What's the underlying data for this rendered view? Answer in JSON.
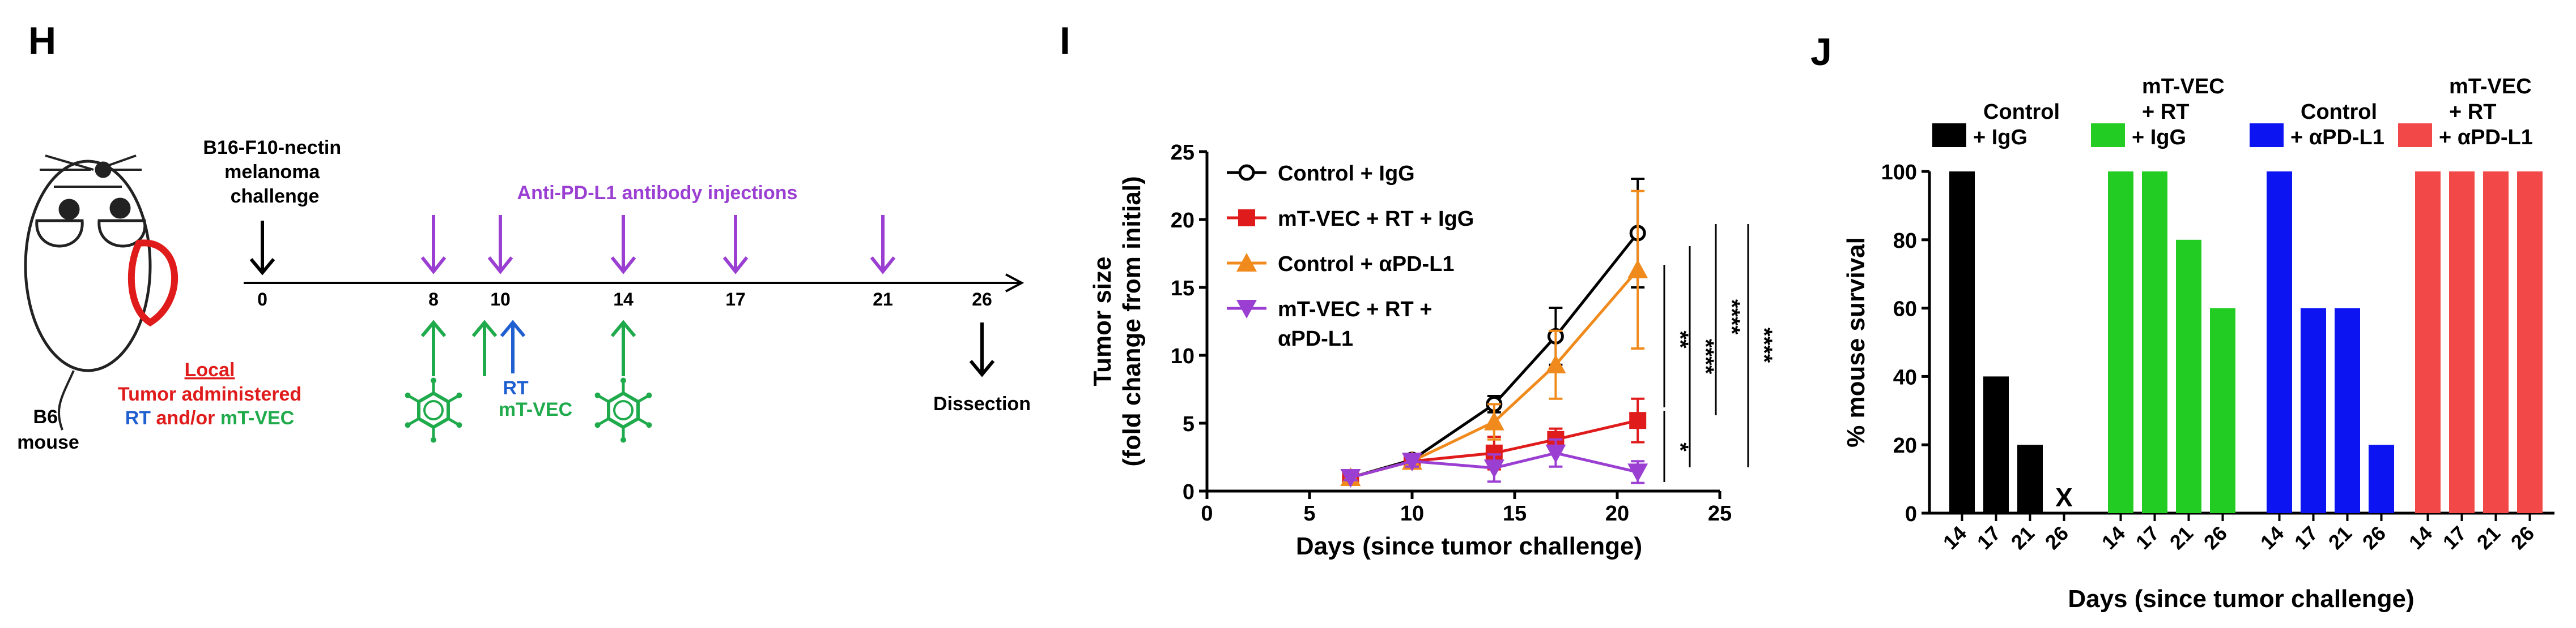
{
  "panels": {
    "H": {
      "letter": "H",
      "challenge_label": [
        "B16-F10-nectin",
        "melanoma",
        "challenge"
      ],
      "injections_label": "Anti-PD-L1 antibody injections",
      "timeline_ticks": [
        "0",
        "8",
        "10",
        "14",
        "17",
        "21",
        "26"
      ],
      "mouse_label": [
        "B6",
        "mouse"
      ],
      "local_label": "Local",
      "tumor_label": "Tumor administered",
      "rt_label": "RT",
      "andor_label": " and/or ",
      "mtvec_label": "mT-VEC",
      "rt_arrow_label": "RT",
      "mtvec_arrow_label": "mT-VEC",
      "dissection_label": "Dissection"
    },
    "I": {
      "letter": "I"
    },
    "J": {
      "letter": "J"
    }
  },
  "colors": {
    "black": "#000000",
    "red": "#e01b1b",
    "orange": "#f08a1c",
    "purple": "#9b3fd3",
    "blue": "#1f5fd0",
    "green": "#1faa4b",
    "bar_green": "#22cc22",
    "bar_blue": "#0c14f2",
    "bar_red": "#f24848"
  },
  "chart_data": [
    {
      "type": "line",
      "ylabel": [
        "Tumor size",
        "(fold change from initial)"
      ],
      "xlabel": "Days (since tumor challenge)",
      "xlim": [
        0,
        25
      ],
      "ylim": [
        0,
        25
      ],
      "xticks": [
        0,
        5,
        10,
        15,
        20,
        25
      ],
      "yticks": [
        0,
        5,
        10,
        15,
        20,
        25
      ],
      "x": [
        7,
        10,
        14,
        17,
        21
      ],
      "series": [
        {
          "name": "Control + IgG",
          "color": "#000000",
          "marker": "circle",
          "values": [
            1,
            2.3,
            6.4,
            11.4,
            19
          ],
          "err": [
            0.2,
            0.3,
            0.6,
            2.1,
            4
          ]
        },
        {
          "name": "mT-VEC + RT + IgG",
          "color": "#e01b1b",
          "marker": "square",
          "values": [
            1,
            2.2,
            2.8,
            3.8,
            5.2
          ],
          "err": [
            0.2,
            0.4,
            1.2,
            0.8,
            1.6
          ]
        },
        {
          "name": "Control + αPD-L1",
          "color": "#f08a1c",
          "marker": "triangle-up",
          "values": [
            1,
            2.2,
            5.1,
            9.3,
            16.3
          ],
          "err": [
            0.2,
            0.4,
            1.3,
            2.5,
            5.8
          ]
        },
        {
          "name": "mT-VEC + RT + αPD-L1",
          "color": "#9b3fd3",
          "marker": "triangle-down",
          "values": [
            1,
            2.2,
            1.7,
            2.8,
            1.4
          ],
          "err": [
            0.2,
            0.4,
            1.0,
            1.0,
            0.8
          ]
        }
      ],
      "legend_names": [
        "Control + IgG",
        "mT-VEC + RT + IgG",
        "Control + αPD-L1",
        "mT-VEC + RT +",
        "αPD-L1"
      ],
      "significance": [
        "**",
        "*",
        "****",
        "****",
        "****"
      ]
    },
    {
      "type": "bar",
      "ylabel": "% mouse survival",
      "xlabel": "Days (since tumor challenge)",
      "ylim": [
        0,
        100
      ],
      "yticks": [
        0,
        20,
        40,
        60,
        80,
        100
      ],
      "categories": [
        "14",
        "17",
        "21",
        "26"
      ],
      "missing_marker": "X",
      "series": [
        {
          "name_lines": [
            "Control",
            "+ IgG"
          ],
          "color": "#000000",
          "values": [
            100,
            40,
            20,
            null
          ]
        },
        {
          "name_lines": [
            "mT-VEC",
            "+ RT",
            "+  IgG"
          ],
          "color": "#22cc22",
          "values": [
            100,
            100,
            80,
            60
          ]
        },
        {
          "name_lines": [
            "Control",
            "+ αPD-L1"
          ],
          "color": "#0c14f2",
          "values": [
            100,
            60,
            60,
            20
          ]
        },
        {
          "name_lines": [
            "mT-VEC",
            "+ RT",
            "+ αPD-L1"
          ],
          "color": "#f24848",
          "values": [
            100,
            100,
            100,
            100
          ]
        }
      ]
    }
  ]
}
